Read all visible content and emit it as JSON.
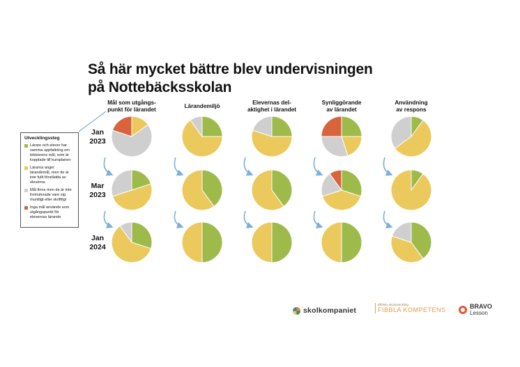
{
  "title": {
    "line1": "Så här mycket bättre blev undervisningen",
    "line2": "på Nottebäcksskolan"
  },
  "legend": {
    "title": "Utvecklingssteg",
    "items": [
      {
        "label": "Lärare och elever har samma uppfattning om lektionens mål, som är kopplade till kursplanen",
        "color": "#9dba4a"
      },
      {
        "label": "Lärarna anger lärandemål, men de är inte fullt förstådda av eleverna",
        "color": "#ecc95c"
      },
      {
        "label": "Mål finns men de är inte formulerade vare sig muntligt eller skriftligt",
        "color": "#cfcfcf"
      },
      {
        "label": "Inga mål används som utgångspunkt för elevernas lärande",
        "color": "#d8633c"
      }
    ]
  },
  "logos": {
    "skolkompaniet": "skolkompaniet",
    "fibbla_small": "Effektiv skolutveckling",
    "fibbla": "FIBBLA KOMPETENS",
    "bravo1": "BRAVO",
    "bravo2": "Lesson"
  },
  "colors": {
    "green": "#9dba4a",
    "yellow": "#ecc95c",
    "gray": "#cfcfcf",
    "red": "#d8633c",
    "arrow": "#7bb0d8"
  },
  "chart_data": {
    "type": "pie",
    "rows": [
      "Jan 2023",
      "Mar 2023",
      "Jan 2024"
    ],
    "columns": [
      "Mål som utgångs-punkt för lärandet",
      "Lärandemiljö",
      "Elevernas del-aktighet i lärandet",
      "Synliggörande av lärandet",
      "Användning av respons"
    ],
    "series_order": [
      "green",
      "yellow",
      "gray",
      "red"
    ],
    "pies": [
      [
        {
          "green": 0,
          "yellow": 15,
          "gray": 65,
          "red": 20
        },
        {
          "green": 25,
          "yellow": 65,
          "gray": 10,
          "red": 0
        },
        {
          "green": 25,
          "yellow": 55,
          "gray": 20,
          "red": 0
        },
        {
          "green": 25,
          "yellow": 20,
          "gray": 30,
          "red": 25
        },
        {
          "green": 10,
          "yellow": 55,
          "gray": 35,
          "red": 0
        }
      ],
      [
        {
          "green": 20,
          "yellow": 50,
          "gray": 30,
          "red": 0
        },
        {
          "green": 40,
          "yellow": 60,
          "gray": 0,
          "red": 0
        },
        {
          "green": 40,
          "yellow": 60,
          "gray": 0,
          "red": 0
        },
        {
          "green": 30,
          "yellow": 40,
          "gray": 20,
          "red": 10
        },
        {
          "green": 10,
          "yellow": 90,
          "gray": 0,
          "red": 0
        }
      ],
      [
        {
          "green": 30,
          "yellow": 60,
          "gray": 10,
          "red": 0
        },
        {
          "green": 50,
          "yellow": 50,
          "gray": 0,
          "red": 0
        },
        {
          "green": 50,
          "yellow": 50,
          "gray": 0,
          "red": 0
        },
        {
          "green": 50,
          "yellow": 50,
          "gray": 0,
          "red": 0
        },
        {
          "green": 40,
          "yellow": 40,
          "gray": 20,
          "red": 0
        }
      ]
    ]
  }
}
